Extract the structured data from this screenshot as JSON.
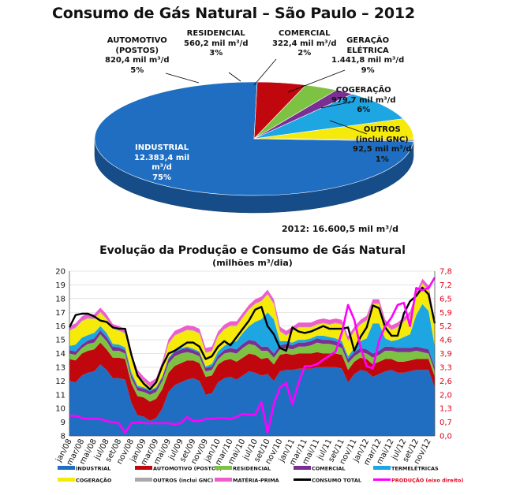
{
  "header": {
    "title": "Consumo de Gás Natural – São Paulo – 2012",
    "total_2012": "2012: 16.600,5 mil m³/d"
  },
  "pie": {
    "slices": [
      {
        "key": "industrial",
        "lines": [
          "INDUSTRIAL",
          "12.383,4 mil",
          "m³/d",
          "75%"
        ],
        "value": 12383.4,
        "color": "#1f6ec2"
      },
      {
        "key": "automotivo",
        "lines": [
          "AUTOMOTIVO",
          "(POSTOS)",
          "820,4 mil m³/d",
          "5%"
        ],
        "value": 820.4,
        "color": "#c0070e"
      },
      {
        "key": "residencial",
        "lines": [
          "RESIDENCIAL",
          "560,2 mil m³/d",
          "3%"
        ],
        "value": 560.2,
        "color": "#7dc243"
      },
      {
        "key": "comercial",
        "lines": [
          "COMERCIAL",
          "322,4 mil m³/d",
          "2%"
        ],
        "value": 322.4,
        "color": "#7a2f93"
      },
      {
        "key": "geracao",
        "lines": [
          "GERAÇÃO",
          "ELÉTRICA",
          "1.441,8 mil m³/d",
          "9%"
        ],
        "value": 1441.8,
        "color": "#1ea6e3"
      },
      {
        "key": "cogeracao",
        "lines": [
          "COGERAÇÃO",
          "979,7 mil m³/d",
          "6%"
        ],
        "value": 979.7,
        "color": "#f6ea0a"
      },
      {
        "key": "outros",
        "lines": [
          "OUTROS",
          "(inclui GNC)",
          "92,5 mil m³/d",
          "1%"
        ],
        "value": 92.5,
        "color": "#a9a9a9"
      }
    ]
  },
  "chart_data": [
    {
      "type": "pie",
      "title": "Consumo de Gás Natural – São Paulo – 2012",
      "categories": [
        "INDUSTRIAL",
        "AUTOMOTIVO (POSTOS)",
        "RESIDENCIAL",
        "COMERCIAL",
        "GERAÇÃO ELÉTRICA",
        "COGERAÇÃO",
        "OUTROS (inclui GNC)"
      ],
      "values": [
        12383.4,
        820.4,
        560.2,
        322.4,
        1441.8,
        979.7,
        92.5
      ],
      "percent": [
        75,
        5,
        3,
        2,
        9,
        6,
        1
      ]
    },
    {
      "type": "area",
      "title": "Evolução da Produção e Consumo de Gás Natural",
      "ylabel": "(milhões m³/dia)",
      "ylim": [
        8,
        20
      ],
      "y2lim": [
        0,
        7.8
      ],
      "y_ticks": [
        "20",
        "19",
        "18",
        "17",
        "16",
        "15",
        "14",
        "13",
        "12",
        "11",
        "10",
        "9",
        "8"
      ],
      "y2_ticks": [
        "7,8",
        "7,2",
        "6,5",
        "5,9",
        "5,2",
        "4,6",
        "3,9",
        "3,3",
        "2,6",
        "2,0",
        "1,3",
        "0,7",
        "0,0"
      ],
      "x_tick_labels": [
        "jan/08",
        "mar/08",
        "mai/08",
        "jul/08",
        "set/08",
        "nov/08",
        "jan/09",
        "mar/09",
        "mai/09",
        "jul/09",
        "set/09",
        "nov/09",
        "jan/10",
        "mar/10",
        "mai/10",
        "jul/10",
        "set/10",
        "nov/10",
        "jan/11",
        "mar/11",
        "mai/11",
        "jul/11",
        "set/11",
        "nov/11",
        "jan/12",
        "mar/12",
        "mai/12",
        "jul/12",
        "set/12",
        "nov/12"
      ],
      "months": 60,
      "series": [
        {
          "name": "INDUSTRIAL",
          "color": "#1f6ec2",
          "values": [
            12.0,
            11.9,
            12.4,
            12.6,
            12.7,
            13.2,
            12.8,
            12.2,
            12.2,
            12.1,
            10.4,
            9.5,
            9.4,
            9.1,
            9.3,
            10.0,
            11.2,
            11.7,
            11.9,
            12.1,
            12.2,
            12.0,
            11.0,
            11.1,
            11.9,
            12.2,
            12.3,
            12.1,
            12.4,
            12.7,
            12.6,
            12.4,
            12.5,
            12.0,
            12.7,
            12.8,
            12.8,
            12.9,
            12.9,
            12.9,
            13.0,
            13.0,
            13.0,
            13.0,
            12.9,
            11.9,
            12.5,
            12.8,
            12.7,
            12.3,
            12.5,
            12.7,
            12.8,
            12.6,
            12.6,
            12.7,
            12.8,
            12.8,
            12.8,
            11.5
          ]
        },
        {
          "name": "AUTOMOTIVO (POSTOS)",
          "color": "#c0070e",
          "values": [
            1.6,
            1.6,
            1.6,
            1.6,
            1.6,
            1.6,
            1.5,
            1.5,
            1.5,
            1.5,
            1.4,
            1.4,
            1.4,
            1.4,
            1.4,
            1.4,
            1.4,
            1.4,
            1.4,
            1.4,
            1.3,
            1.3,
            1.3,
            1.3,
            1.3,
            1.3,
            1.3,
            1.3,
            1.3,
            1.3,
            1.3,
            1.2,
            1.2,
            1.2,
            1.2,
            1.2,
            1.1,
            1.1,
            1.1,
            1.1,
            1.1,
            1.0,
            1.0,
            1.0,
            1.0,
            0.9,
            0.9,
            0.9,
            0.9,
            0.9,
            0.9,
            0.9,
            0.8,
            0.8,
            0.8,
            0.8,
            0.8,
            0.8,
            0.8,
            0.8
          ]
        },
        {
          "name": "RESIDENCIAL",
          "color": "#7dc243",
          "values": [
            0.4,
            0.4,
            0.4,
            0.5,
            0.5,
            0.6,
            0.6,
            0.5,
            0.5,
            0.4,
            0.4,
            0.4,
            0.4,
            0.5,
            0.5,
            0.6,
            0.7,
            0.7,
            0.7,
            0.6,
            0.5,
            0.5,
            0.4,
            0.4,
            0.4,
            0.5,
            0.5,
            0.6,
            0.7,
            0.7,
            0.7,
            0.6,
            0.5,
            0.5,
            0.4,
            0.4,
            0.4,
            0.5,
            0.5,
            0.6,
            0.7,
            0.7,
            0.7,
            0.6,
            0.5,
            0.5,
            0.4,
            0.4,
            0.4,
            0.5,
            0.5,
            0.6,
            0.6,
            0.7,
            0.7,
            0.6,
            0.6,
            0.5,
            0.4,
            0.4
          ]
        },
        {
          "name": "COMERCIAL",
          "color": "#7a2f93",
          "values": [
            0.25,
            0.25,
            0.25,
            0.25,
            0.3,
            0.3,
            0.3,
            0.3,
            0.25,
            0.25,
            0.25,
            0.25,
            0.25,
            0.25,
            0.25,
            0.25,
            0.3,
            0.3,
            0.3,
            0.3,
            0.25,
            0.25,
            0.25,
            0.25,
            0.25,
            0.25,
            0.3,
            0.3,
            0.3,
            0.3,
            0.3,
            0.3,
            0.3,
            0.3,
            0.3,
            0.3,
            0.3,
            0.3,
            0.3,
            0.3,
            0.3,
            0.3,
            0.3,
            0.3,
            0.3,
            0.3,
            0.3,
            0.3,
            0.3,
            0.3,
            0.3,
            0.3,
            0.3,
            0.3,
            0.3,
            0.3,
            0.3,
            0.3,
            0.3,
            0.3
          ]
        },
        {
          "name": "TERMELÉTRICAS",
          "color": "#1ea6e3",
          "values": [
            0.3,
            0.5,
            0.5,
            0.4,
            0.4,
            0.3,
            0.3,
            0.2,
            0.2,
            0.2,
            0.2,
            0.1,
            0.1,
            0.1,
            0.1,
            0.1,
            0.1,
            0.1,
            0.1,
            0.1,
            0.1,
            0.1,
            0.1,
            0.2,
            0.3,
            0.3,
            0.4,
            0.6,
            0.8,
            1.0,
            1.4,
            2.0,
            2.5,
            2.5,
            0.3,
            0.2,
            0.2,
            0.2,
            0.2,
            0.2,
            0.2,
            0.3,
            0.2,
            0.2,
            0.2,
            0.2,
            0.3,
            0.5,
            0.8,
            2.2,
            2.0,
            0.6,
            0.4,
            0.6,
            0.8,
            1.0,
            2.3,
            3.2,
            2.8,
            1.5
          ]
        },
        {
          "name": "COGERAÇÃO",
          "color": "#f6ea0a",
          "values": [
            1.1,
            1.2,
            1.2,
            1.2,
            1.0,
            1.0,
            1.0,
            1.1,
            1.0,
            1.0,
            1.0,
            0.8,
            0.4,
            0.2,
            0.3,
            0.7,
            1.0,
            1.1,
            1.1,
            1.2,
            1.3,
            1.3,
            1.0,
            0.9,
            1.1,
            1.2,
            1.2,
            1.1,
            1.1,
            1.2,
            1.3,
            1.3,
            1.3,
            1.1,
            0.7,
            0.4,
            0.8,
            0.9,
            0.9,
            0.8,
            0.8,
            0.9,
            0.9,
            1.1,
            1.2,
            1.1,
            1.2,
            1.2,
            1.3,
            1.4,
            1.4,
            1.0,
            0.8,
            0.9,
            1.1,
            1.3,
            1.3,
            1.5,
            1.5,
            1.4
          ]
        },
        {
          "name": "OUTROS (inclui GNC)",
          "color": "#a9a9a9",
          "values": [
            0.05,
            0.05,
            0.05,
            0.05,
            0.05,
            0.05,
            0.05,
            0.05,
            0.05,
            0.05,
            0.05,
            0.05,
            0.05,
            0.05,
            0.05,
            0.05,
            0.05,
            0.05,
            0.05,
            0.05,
            0.05,
            0.05,
            0.05,
            0.05,
            0.05,
            0.05,
            0.05,
            0.05,
            0.05,
            0.05,
            0.05,
            0.05,
            0.05,
            0.05,
            0.05,
            0.05,
            0.05,
            0.05,
            0.05,
            0.05,
            0.05,
            0.05,
            0.05,
            0.05,
            0.05,
            0.05,
            0.05,
            0.05,
            0.05,
            0.05,
            0.05,
            0.05,
            0.05,
            0.05,
            0.05,
            0.05,
            0.05,
            0.05,
            0.05,
            0.05
          ]
        },
        {
          "name": "MATÉRIA-PRIMA",
          "color": "#ee5ccd",
          "values": [
            0.3,
            0.3,
            0.3,
            0.3,
            0.3,
            0.3,
            0.3,
            0.3,
            0.3,
            0.3,
            0.3,
            0.3,
            0.3,
            0.3,
            0.3,
            0.3,
            0.3,
            0.3,
            0.3,
            0.3,
            0.3,
            0.3,
            0.3,
            0.3,
            0.3,
            0.3,
            0.3,
            0.3,
            0.3,
            0.3,
            0.3,
            0.3,
            0.3,
            0.3,
            0.3,
            0.3,
            0.3,
            0.3,
            0.3,
            0.3,
            0.3,
            0.3,
            0.3,
            0.3,
            0.3,
            0.3,
            0.3,
            0.3,
            0.3,
            0.3,
            0.3,
            0.3,
            0.3,
            0.3,
            0.3,
            0.3,
            0.3,
            0.3,
            0.3,
            0.3
          ]
        },
        {
          "name": "CONSUMO TOTAL",
          "color": "#000000",
          "values": [
            15.9,
            16.8,
            16.9,
            16.9,
            16.7,
            16.4,
            16.3,
            15.9,
            15.8,
            15.8,
            13.9,
            12.4,
            11.8,
            11.4,
            11.9,
            13.1,
            14.0,
            14.2,
            14.5,
            14.8,
            14.8,
            14.5,
            13.6,
            13.8,
            14.5,
            14.9,
            14.6,
            15.2,
            15.8,
            16.4,
            17.2,
            17.4,
            16.0,
            15.4,
            14.4,
            14.2,
            15.9,
            15.6,
            15.5,
            15.6,
            15.8,
            16.0,
            15.8,
            15.8,
            15.8,
            15.9,
            14.2,
            15.2,
            15.9,
            17.5,
            17.3,
            15.9,
            15.3,
            15.3,
            16.9,
            17.8,
            18.2,
            18.8,
            18.3,
            16.2
          ]
        },
        {
          "name": "PRODUÇÃO (eixo direito)",
          "color": "#ff00ff",
          "axis": "right",
          "values": [
            0.95,
            0.95,
            0.85,
            0.8,
            0.8,
            0.8,
            0.7,
            0.65,
            0.6,
            0.15,
            0.6,
            0.65,
            0.6,
            0.6,
            0.6,
            0.6,
            0.6,
            0.55,
            0.6,
            0.9,
            0.7,
            0.7,
            0.8,
            0.8,
            0.85,
            0.85,
            0.8,
            0.9,
            1.05,
            1.0,
            1.0,
            1.6,
            0.15,
            1.5,
            2.3,
            2.5,
            1.5,
            2.5,
            3.3,
            3.3,
            3.4,
            3.6,
            3.8,
            4.0,
            4.9,
            6.2,
            5.5,
            4.2,
            3.3,
            3.2,
            4.5,
            5.2,
            5.6,
            6.2,
            6.3,
            5.2,
            7.0,
            6.9,
            7.0,
            7.5
          ]
        }
      ]
    }
  ]
}
